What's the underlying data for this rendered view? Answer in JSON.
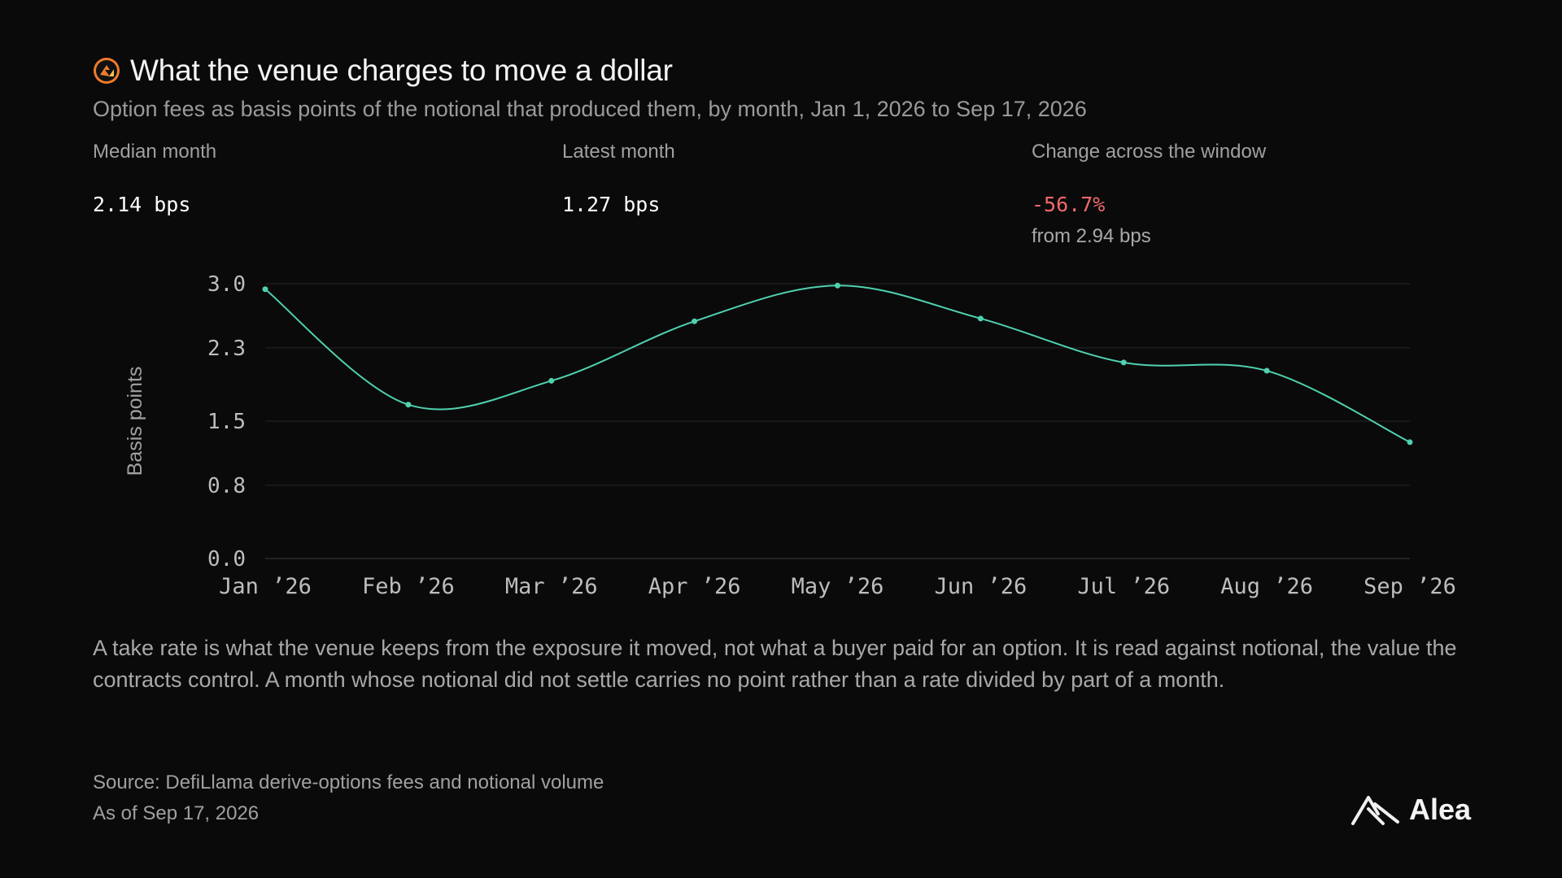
{
  "header": {
    "title": "What the venue charges to move a dollar",
    "subtitle": "Option fees as basis points of the notional that produced them, by month, Jan 1, 2026 to Sep 17, 2026"
  },
  "stats": [
    {
      "label": "Median month",
      "value": "2.14 bps"
    },
    {
      "label": "Latest month",
      "value": "1.27 bps"
    },
    {
      "label": "Change across the window",
      "value": "-56.7%",
      "sub": "from 2.94 bps"
    }
  ],
  "chart_data": {
    "type": "line",
    "ylabel": "Basis points",
    "xlabel": "",
    "categories": [
      "Jan ’26",
      "Feb ’26",
      "Mar ’26",
      "Apr ’26",
      "May ’26",
      "Jun ’26",
      "Jul ’26",
      "Aug ’26",
      "Sep ’26"
    ],
    "series": [
      {
        "values": [
          2.94,
          1.68,
          1.94,
          2.59,
          2.98,
          2.62,
          2.14,
          2.05,
          1.27
        ]
      }
    ],
    "ylim": [
      0,
      3.0
    ],
    "yticks": [
      0.0,
      0.8,
      1.5,
      2.3,
      3.0
    ],
    "ytick_labels": [
      "0.0",
      "0.8",
      "1.5",
      "2.3",
      "3.0"
    ],
    "grid": true,
    "colors": {
      "line": "#4fd1b0",
      "grid": "#262626",
      "axis_text": "#bdbdbd"
    }
  },
  "note": "A take rate is what the venue keeps from the exposure it moved, not what a buyer paid for an option. It is read against notional, the value the contracts control. A month whose notional did not settle carries no point rather than a rate divided by part of a month.",
  "source": {
    "line1": "Source: DefiLlama derive-options fees and notional volume",
    "line2": "As of Sep 17, 2026"
  },
  "brand": {
    "name": "Alea",
    "icon": "alea-logo-icon"
  },
  "title_icon": "venue-logo-icon",
  "accent_colors": {
    "negative": "#f26a6a",
    "logo_orange": "#f07a2a"
  }
}
